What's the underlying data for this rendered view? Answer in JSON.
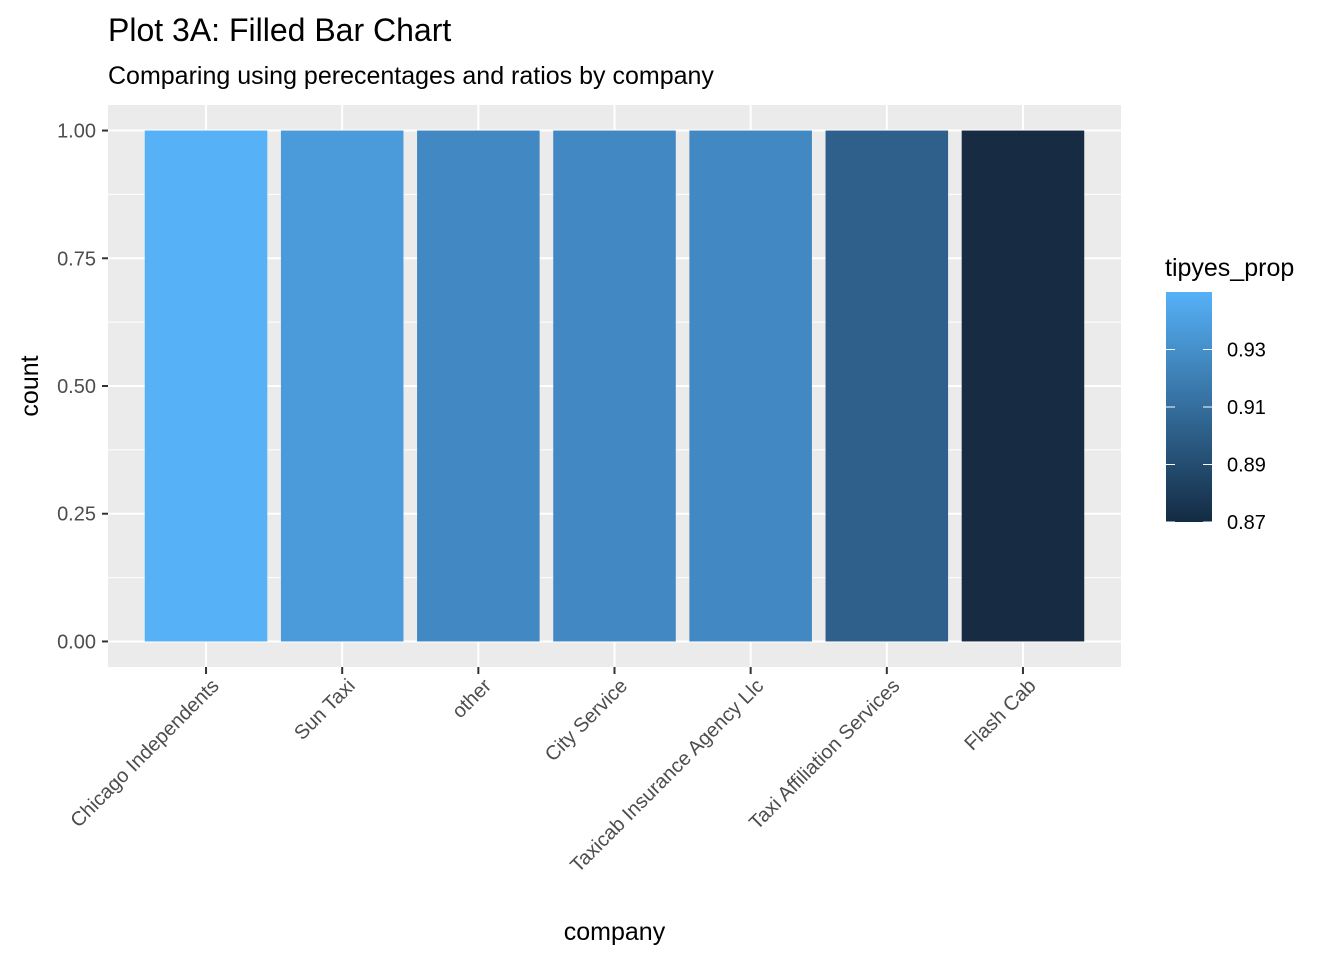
{
  "chart_data": {
    "type": "bar",
    "title": "Plot 3A: Filled Bar Chart",
    "subtitle": "Comparing using perecentages and ratios by company",
    "xlabel": "company",
    "ylabel": "count",
    "ylim": [
      0,
      1.05
    ],
    "y_ticks": [
      0.0,
      0.25,
      0.5,
      0.75,
      1.0
    ],
    "y_tick_labels": [
      "0.00",
      "0.25",
      "0.50",
      "0.75",
      "1.00"
    ],
    "categories": [
      "Chicago Independents",
      "Sun Taxi",
      "other",
      "City Service",
      "Taxicab Insurance Agency Llc",
      "Taxi Affiliation Services",
      "Flash Cab"
    ],
    "values": [
      1.0,
      1.0,
      1.0,
      1.0,
      1.0,
      1.0,
      1.0
    ],
    "fill_values": [
      0.948,
      0.936,
      0.928,
      0.928,
      0.928,
      0.906,
      0.872
    ],
    "fill_colors": [
      "#56b1f7",
      "#4b9ad9",
      "#4288c2",
      "#4288c2",
      "#4288c2",
      "#2f5f8b",
      "#172c43"
    ],
    "grid": true,
    "legend": {
      "title": "tipyes_prop",
      "position": "right",
      "range": [
        0.87,
        0.95
      ],
      "low_color": "#132b43",
      "high_color": "#56b1f7",
      "ticks": [
        0.87,
        0.89,
        0.91,
        0.93
      ],
      "tick_labels": [
        "0.87",
        "0.89",
        "0.91",
        "0.93"
      ]
    },
    "colors": {
      "panel_background": "#ebebeb",
      "grid_major": "#ffffff",
      "tick_text": "#4d4d4d",
      "tick_line": "#333333"
    }
  }
}
